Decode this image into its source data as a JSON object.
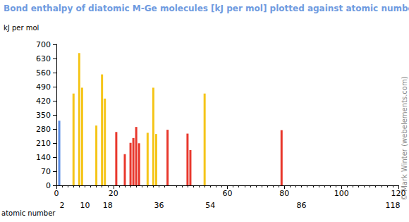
{
  "chart_data": {
    "type": "bar",
    "title": "Bond enthalpy of diatomic M-Ge molecules [kJ per mol] plotted against atomic number",
    "ylabel": "kJ per mol",
    "xlabel": "atomic number",
    "annotations": [
      "© Mark Winter (webelements.com)"
    ],
    "x": [
      1,
      6,
      8,
      9,
      14,
      16,
      17,
      21,
      24,
      26,
      27,
      28,
      29,
      32,
      34,
      35,
      39,
      46,
      47,
      52,
      79
    ],
    "values": [
      321,
      456,
      657,
      485,
      297,
      551,
      431,
      265,
      155,
      211,
      235,
      290,
      209,
      261,
      485,
      255,
      276,
      257,
      175,
      456,
      274
    ],
    "colors": [
      "#5b8ee6",
      "#f5c518",
      "#f5c518",
      "#f5c518",
      "#f5c518",
      "#f5c518",
      "#f5c518",
      "#e8372c",
      "#e8372c",
      "#e8372c",
      "#e8372c",
      "#e8372c",
      "#e8372c",
      "#f5c518",
      "#f5c518",
      "#f5c518",
      "#e8372c",
      "#e8372c",
      "#e8372c",
      "#f5c518",
      "#e8372c"
    ],
    "xlim": [
      0,
      120
    ],
    "xticks": [
      0,
      20,
      60,
      80,
      100,
      120
    ],
    "x2ticks": [
      2,
      10,
      18,
      36,
      54,
      86,
      118
    ],
    "ylim": [
      0,
      700
    ],
    "yticks": [
      0,
      70,
      140,
      210,
      280,
      350,
      420,
      490,
      560,
      630,
      700
    ],
    "grid": false
  }
}
